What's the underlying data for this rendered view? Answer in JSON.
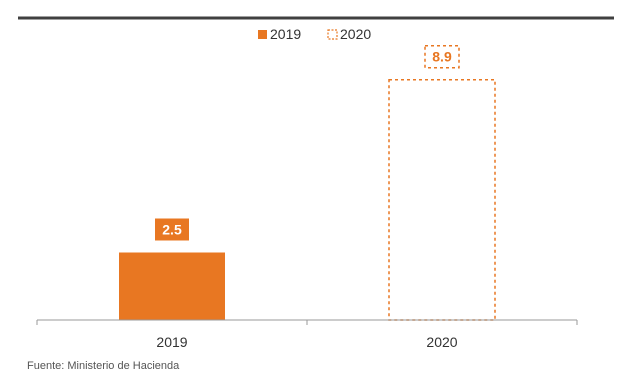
{
  "chart_data": {
    "type": "bar",
    "categories": [
      "2019",
      "2020"
    ],
    "series": [
      {
        "name": "2019",
        "values": [
          2.5,
          null
        ],
        "style": "solid",
        "color": "#e87722"
      },
      {
        "name": "2020",
        "values": [
          null,
          8.9
        ],
        "style": "dashed-outline",
        "color": "#e87722"
      }
    ],
    "data_labels": [
      "2.5",
      "8.9"
    ],
    "legend": {
      "placement": "top-center",
      "entries": [
        "2019",
        "2020"
      ]
    },
    "ylim": [
      0,
      10
    ],
    "grid": false,
    "xlabel": "",
    "ylabel": ""
  },
  "colors": {
    "accent": "#e87722",
    "header_rule": "#404040",
    "axis": "#9a9a9a",
    "text": "#333333"
  },
  "source": "Fuente: Ministerio de Hacienda"
}
